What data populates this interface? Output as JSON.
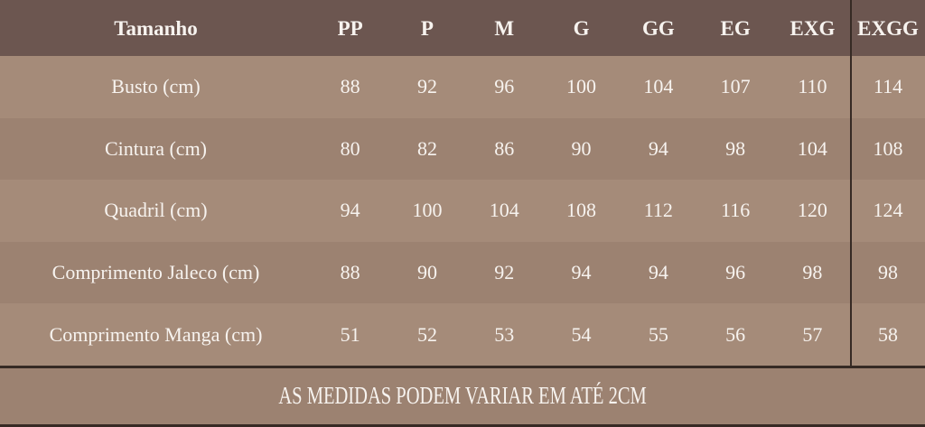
{
  "chart_data": {
    "type": "table",
    "columns": [
      "Tamanho",
      "PP",
      "P",
      "M",
      "G",
      "GG",
      "EG",
      "EXG",
      "EXGG"
    ],
    "rows": [
      {
        "label": "Busto (cm)",
        "values": [
          88,
          92,
          96,
          100,
          104,
          107,
          110,
          114
        ]
      },
      {
        "label": "Cintura (cm)",
        "values": [
          80,
          82,
          86,
          90,
          94,
          98,
          104,
          108
        ]
      },
      {
        "label": "Quadril (cm)",
        "values": [
          94,
          100,
          104,
          108,
          112,
          116,
          120,
          124
        ]
      },
      {
        "label": "Comprimento Jaleco (cm)",
        "values": [
          88,
          90,
          92,
          94,
          94,
          96,
          98,
          98
        ]
      },
      {
        "label": "Comprimento Manga (cm)",
        "values": [
          51,
          52,
          53,
          54,
          55,
          56,
          57,
          58
        ]
      }
    ],
    "footer_note": "AS MEDIDAS PODEM VARIAR EM ATÉ 2CM",
    "layout": {
      "legend": "none",
      "grid": "row-banding"
    }
  },
  "colors": {
    "header_bg": "#6c5650",
    "row_light": "#a58b79",
    "row_dark": "#9c8271",
    "footer_bg": "#9c8271",
    "text": "#f7f3ef",
    "divider": "#362a24"
  }
}
